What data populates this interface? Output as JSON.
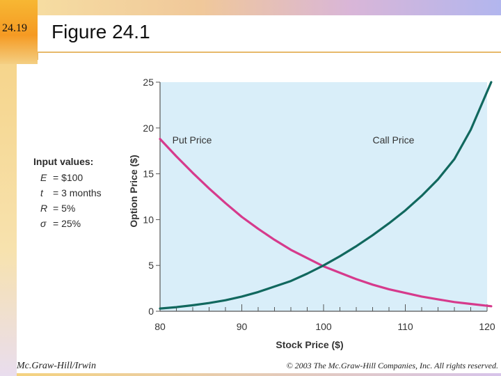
{
  "slide": {
    "number": "24.19",
    "title": "Figure 24.1",
    "footer_left": "Mc.Graw-Hill/Irwin",
    "footer_right": "© 2003 The Mc.Graw-Hill Companies, Inc. All rights reserved."
  },
  "inputs": {
    "heading": "Input values:",
    "rows": [
      {
        "symbol": "E",
        "value": "= $100"
      },
      {
        "symbol": "t",
        "value": "= 3 months"
      },
      {
        "symbol": "R",
        "value": "= 5%"
      },
      {
        "symbol": "σ",
        "value": "= 25%"
      }
    ]
  },
  "chart_data": {
    "type": "line",
    "xlabel": "Stock Price ($)",
    "ylabel": "Option Price ($)",
    "xlim": [
      80,
      120
    ],
    "ylim": [
      0,
      25
    ],
    "xticks": [
      80,
      90,
      100,
      110,
      120
    ],
    "yticks": [
      0,
      5,
      10,
      15,
      20,
      25
    ],
    "grid": false,
    "background_color": "#d9eef9",
    "x": [
      80,
      82,
      84,
      86,
      88,
      90,
      92,
      94,
      96,
      98,
      100,
      102,
      104,
      106,
      108,
      110,
      112,
      114,
      116,
      118,
      120.5
    ],
    "series": [
      {
        "name": "Put Price",
        "color": "#d63a8c",
        "values": [
          18.8,
          16.9,
          15.1,
          13.4,
          11.8,
          10.3,
          9.0,
          7.8,
          6.7,
          5.8,
          4.9,
          4.2,
          3.5,
          2.9,
          2.4,
          2.0,
          1.6,
          1.3,
          1.0,
          0.8,
          0.55
        ]
      },
      {
        "name": "Call Price",
        "color": "#11685e",
        "values": [
          0.3,
          0.45,
          0.65,
          0.9,
          1.2,
          1.6,
          2.1,
          2.7,
          3.3,
          4.1,
          5.0,
          6.0,
          7.1,
          8.3,
          9.6,
          11.0,
          12.6,
          14.4,
          16.6,
          19.8,
          25.0
        ]
      }
    ],
    "annotations": [
      {
        "text": "Put Price",
        "x": 81.5,
        "y": 18.3
      },
      {
        "text": "Call Price",
        "x": 106,
        "y": 18.3
      }
    ]
  }
}
